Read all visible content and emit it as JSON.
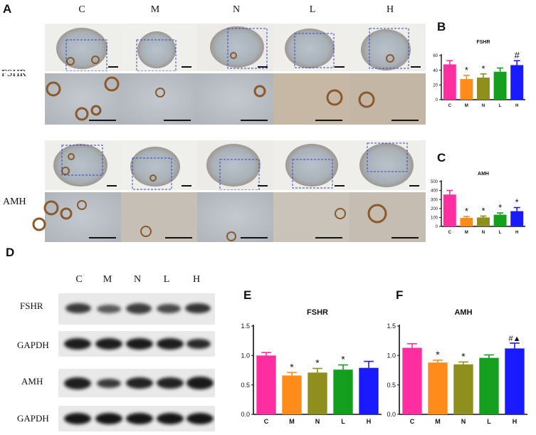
{
  "panels": {
    "a": "A",
    "b": "B",
    "c": "C",
    "d": "D",
    "e": "E",
    "f": "F"
  },
  "groups": [
    "C",
    "M",
    "N",
    "L",
    "H"
  ],
  "ihc_rows": [
    "FSHR",
    "AMH"
  ],
  "blot_rows": [
    "FSHR",
    "GAPDH",
    "AMH",
    "GAPDH"
  ],
  "bar_colors": [
    "#ff2ea0",
    "#ff8c1a",
    "#8f8f1e",
    "#14a01e",
    "#1a1aff"
  ],
  "chart_data": [
    {
      "id": "B",
      "type": "bar",
      "title": "FSHR",
      "categories": [
        "C",
        "M",
        "N",
        "L",
        "H"
      ],
      "values": [
        48,
        28,
        30,
        38,
        47
      ],
      "errors": [
        5,
        5,
        5,
        5,
        6
      ],
      "annotations": [
        "",
        "*",
        "*",
        "",
        "#"
      ],
      "ylim": [
        0,
        60
      ],
      "yticks": [
        "0",
        "20",
        "40",
        "60"
      ],
      "ytick_values": [
        0,
        20,
        40,
        60
      ],
      "xlabel": "",
      "ylabel": ""
    },
    {
      "id": "C",
      "type": "bar",
      "title": "AMH",
      "categories": [
        "C",
        "M",
        "N",
        "L",
        "H"
      ],
      "values": [
        355,
        95,
        100,
        130,
        170
      ],
      "errors": [
        45,
        15,
        15,
        20,
        40
      ],
      "annotations": [
        "",
        "*",
        "*",
        "*",
        "*"
      ],
      "ylim": [
        0,
        500
      ],
      "yticks": [
        "0",
        "100",
        "200",
        "300",
        "400",
        "500"
      ],
      "ytick_values": [
        0,
        100,
        200,
        300,
        400,
        500
      ],
      "xlabel": "",
      "ylabel": ""
    },
    {
      "id": "E",
      "type": "bar",
      "title": "FSHR",
      "categories": [
        "C",
        "M",
        "N",
        "L",
        "H"
      ],
      "values": [
        1.0,
        0.66,
        0.71,
        0.76,
        0.79
      ],
      "errors": [
        0.05,
        0.05,
        0.07,
        0.08,
        0.11
      ],
      "annotations": [
        "",
        "*",
        "*",
        "*",
        ""
      ],
      "ylim": [
        0,
        1.5
      ],
      "yticks": [
        "0.0",
        "0.5",
        "1.0",
        "1.5"
      ],
      "ytick_values": [
        0,
        0.5,
        1.0,
        1.5
      ],
      "xlabel": "",
      "ylabel": ""
    },
    {
      "id": "F",
      "type": "bar",
      "title": "AMH",
      "categories": [
        "C",
        "M",
        "N",
        "L",
        "H"
      ],
      "values": [
        1.13,
        0.88,
        0.85,
        0.96,
        1.12
      ],
      "errors": [
        0.07,
        0.04,
        0.04,
        0.05,
        0.09
      ],
      "annotations": [
        "",
        "*",
        "*",
        "",
        "#▲"
      ],
      "ylim": [
        0,
        1.5
      ],
      "yticks": [
        "0.0",
        "0.5",
        "1.0",
        "1.5"
      ],
      "ytick_values": [
        0,
        0.5,
        1.0,
        1.5
      ],
      "xlabel": "",
      "ylabel": ""
    }
  ]
}
